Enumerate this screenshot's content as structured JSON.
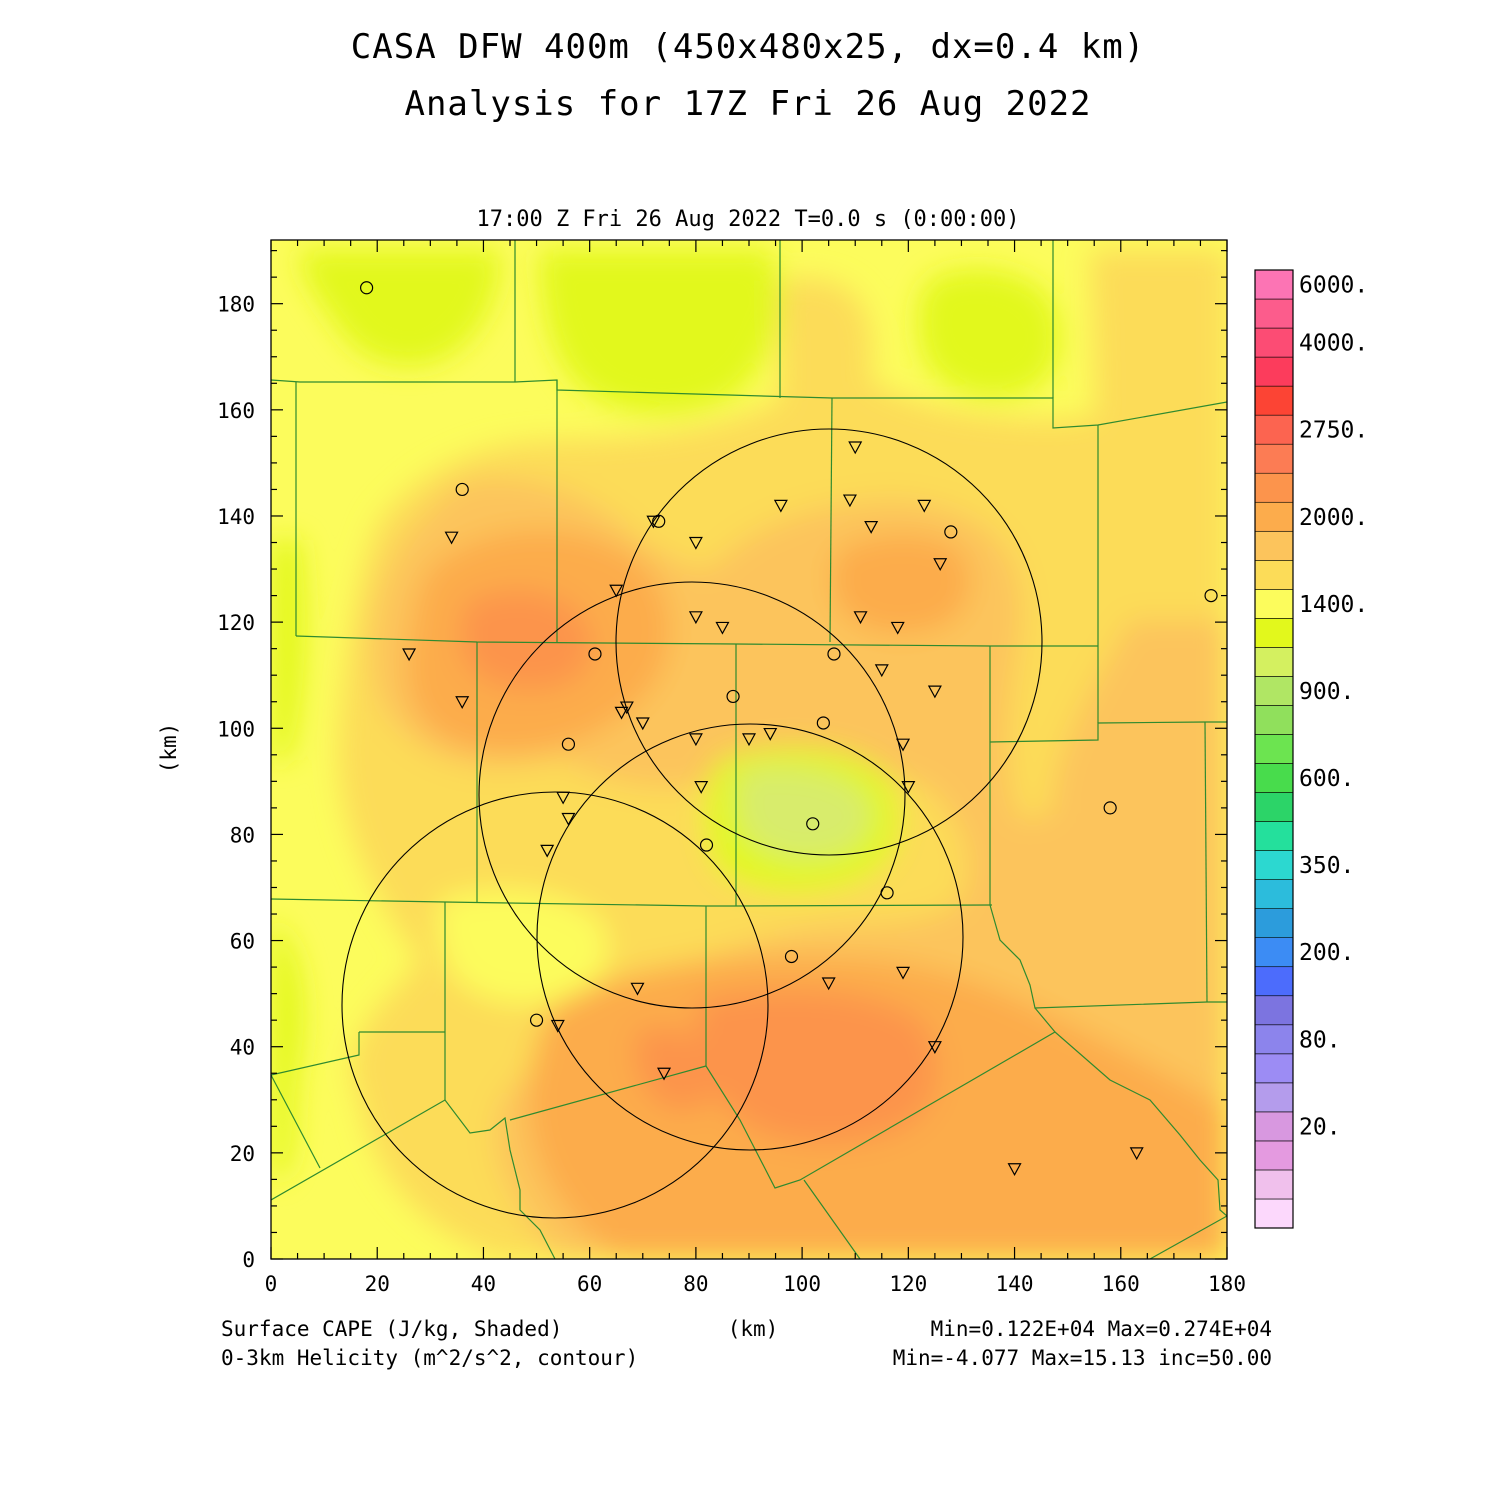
{
  "title_line1": "CASA DFW 400m (450x480x25, dx=0.4 km)",
  "title_line2": "Analysis for 17Z Fri 26 Aug 2022",
  "time_label": "17:00 Z Fri 26 Aug 2022   T=0.0 s (0:00:00)",
  "axis_unit_y": "(km)",
  "axis_unit_x": "(km)",
  "field1_label": "Surface CAPE (J/kg, Shaded)",
  "field2_label": "0-3km Helicity (m^2/s^2, contour)",
  "field1_stats": "Min=0.122E+04 Max=0.274E+04",
  "field2_stats": "Min=-4.077 Max=15.13 inc=50.00",
  "chart_data": {
    "type": "heatmap",
    "xlim": [
      0,
      180
    ],
    "ylim": [
      0,
      192
    ],
    "x_ticks": [
      "0",
      "20",
      "40",
      "60",
      "80",
      "100",
      "120",
      "140",
      "160",
      "180"
    ],
    "y_ticks": [
      "0",
      "20",
      "40",
      "60",
      "80",
      "100",
      "120",
      "140",
      "160",
      "180"
    ],
    "colorbar": {
      "colors": [
        "#fcd8fc",
        "#f0c0ec",
        "#e49ae0",
        "#d898e0",
        "#b49cec",
        "#9c8cf4",
        "#8c84ec",
        "#7c74e0",
        "#4c6cfc",
        "#3c8cf4",
        "#2c9cdc",
        "#2cbcdc",
        "#2cd8d0",
        "#24e09c",
        "#2cd468",
        "#48dc4c",
        "#6ce450",
        "#90e05c",
        "#b0e664",
        "#d4f060",
        "#e2f81c",
        "#fcfc5c",
        "#fcdc58",
        "#fcc45c",
        "#fcac4c",
        "#fc944c",
        "#fc7c54",
        "#fc6450",
        "#fc4434",
        "#fc3c5c",
        "#fc4c74",
        "#fc5c8c",
        "#fc74b4"
      ],
      "labels": [
        {
          "text": "6000.",
          "index": 32
        },
        {
          "text": "4000.",
          "index": 30
        },
        {
          "text": "2750.",
          "index": 27
        },
        {
          "text": "2000.",
          "index": 24
        },
        {
          "text": "1400.",
          "index": 21
        },
        {
          "text": "900.",
          "index": 18
        },
        {
          "text": "600.",
          "index": 15
        },
        {
          "text": "350.",
          "index": 12
        },
        {
          "text": "200.",
          "index": 9
        },
        {
          "text": "80.",
          "index": 6
        },
        {
          "text": "20.",
          "index": 3
        }
      ]
    },
    "radar_rings": [
      {
        "cx": 105,
        "cy": 115,
        "r": 40
      },
      {
        "cx": 79,
        "cy": 87,
        "r": 40
      },
      {
        "cx": 90,
        "cy": 61,
        "r": 40
      },
      {
        "cx": 55,
        "cy": 48,
        "r": 40
      }
    ],
    "sites_circle": [
      [
        18,
        183
      ],
      [
        36,
        145
      ],
      [
        73,
        139
      ],
      [
        61,
        114
      ],
      [
        56,
        97
      ],
      [
        87,
        106
      ],
      [
        106,
        114
      ],
      [
        104,
        101
      ],
      [
        102,
        82
      ],
      [
        82,
        78
      ],
      [
        116,
        69
      ],
      [
        98,
        57
      ],
      [
        50,
        45
      ],
      [
        128,
        137
      ],
      [
        177,
        125
      ],
      [
        158,
        85
      ]
    ],
    "sites_triangle": [
      [
        34,
        136
      ],
      [
        26,
        114
      ],
      [
        36,
        105
      ],
      [
        65,
        126
      ],
      [
        72,
        139
      ],
      [
        80,
        135
      ],
      [
        80,
        121
      ],
      [
        85,
        119
      ],
      [
        67,
        104
      ],
      [
        70,
        101
      ],
      [
        66,
        103
      ],
      [
        80,
        98
      ],
      [
        90,
        98
      ],
      [
        94,
        99
      ],
      [
        81,
        89
      ],
      [
        55,
        87
      ],
      [
        56,
        83
      ],
      [
        52,
        77
      ],
      [
        96,
        142
      ],
      [
        110,
        153
      ],
      [
        109,
        143
      ],
      [
        123,
        142
      ],
      [
        113,
        138
      ],
      [
        126,
        131
      ],
      [
        111,
        121
      ],
      [
        118,
        119
      ],
      [
        115,
        111
      ],
      [
        125,
        107
      ],
      [
        119,
        97
      ],
      [
        120,
        89
      ],
      [
        69,
        51
      ],
      [
        105,
        52
      ],
      [
        119,
        54
      ],
      [
        54,
        44
      ],
      [
        74,
        35
      ],
      [
        125,
        40
      ],
      [
        140,
        17
      ],
      [
        163,
        20
      ]
    ]
  }
}
